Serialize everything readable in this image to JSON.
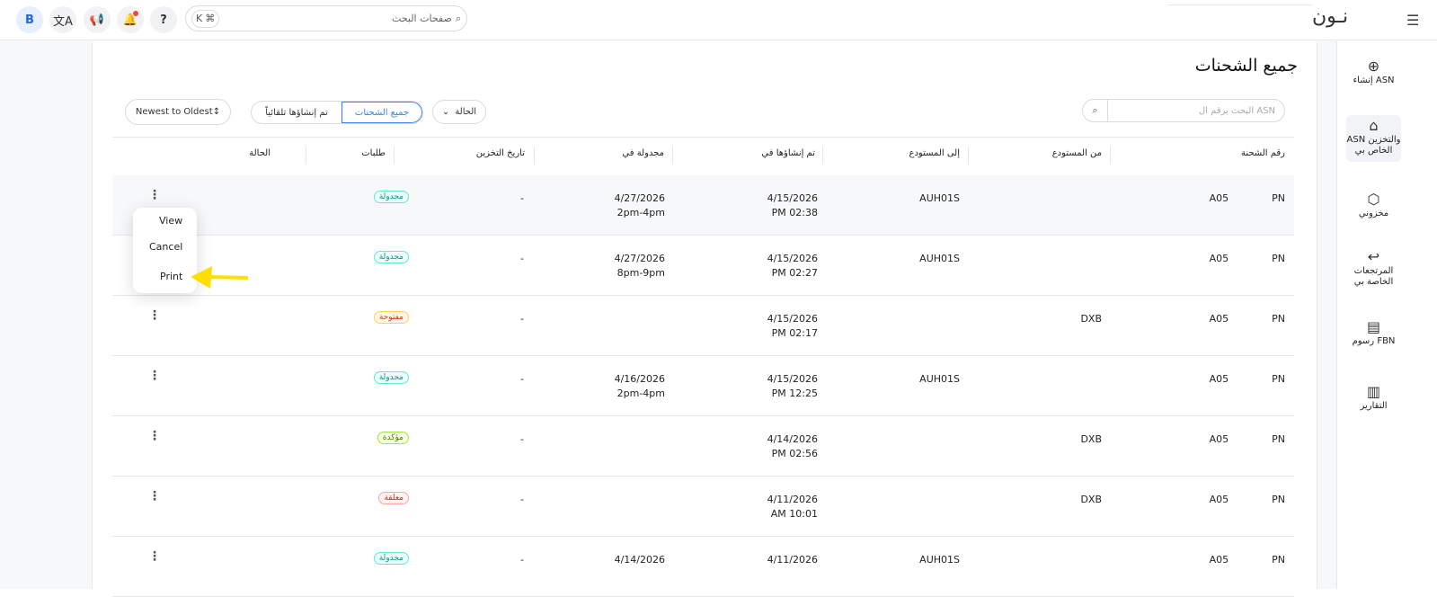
{
  "topbar": {
    "avatar": "B",
    "search_placeholder": "صفحات البحث",
    "shortcut_key": "K",
    "shortcut_mod": "⌘",
    "logo": "نـون"
  },
  "colors": {
    "accent": "#3b82f6",
    "scheduled": "#14b8a6",
    "open": "#f59e0b",
    "confirmed": "#65a30d",
    "pending": "#ef4444",
    "arrow": "#fde000"
  },
  "sidebar": {
    "items": [
      {
        "label": "إنشاء ASN",
        "icon": "plus-circle-icon"
      },
      {
        "label": "ASN والتخزين الخاص بي",
        "icon": "warehouse-icon"
      },
      {
        "label": "مخزوني",
        "icon": "box-icon"
      },
      {
        "label": "المرتجعات الخاصة بي",
        "icon": "return-icon"
      },
      {
        "label": "رسوم FBN",
        "icon": "receipt-icon"
      },
      {
        "label": "التقارير",
        "icon": "report-icon"
      }
    ]
  },
  "page": {
    "title": "جميع الشحنات",
    "asn_search_placeholder": "البحث برقم ال ASN",
    "status_filter": "الحالة",
    "tabs": [
      "جميع الشحنات",
      "تم إنشاؤها تلقائياً"
    ],
    "sort": "Newest to Oldest"
  },
  "table": {
    "headers": [
      "رقم الشحنة",
      "من المستودع",
      "إلى المستودع",
      "تم إنشاؤها في",
      "مجدولة في",
      "تاريخ التخزين",
      "طلبات",
      "الحالة"
    ],
    "rows": [
      {
        "id_start": "A05",
        "id_end": "PN",
        "from": "",
        "to": "AUH01S",
        "created_date": "4/15/2026",
        "created_time": "PM 02:38",
        "sched_date": "4/27/2026",
        "sched_time": "2pm-4pm",
        "storage": "-",
        "orders": "",
        "status": "مجدولة",
        "status_type": "scheduled"
      },
      {
        "id_start": "A05",
        "id_end": "PN",
        "from": "",
        "to": "AUH01S",
        "created_date": "4/15/2026",
        "created_time": "PM 02:27",
        "sched_date": "4/27/2026",
        "sched_time": "8pm-9pm",
        "storage": "-",
        "orders": "",
        "status": "مجدولة",
        "status_type": "scheduled"
      },
      {
        "id_start": "A05",
        "id_end": "PN",
        "from": "DXB",
        "to": "",
        "created_date": "4/15/2026",
        "created_time": "PM 02:17",
        "sched_date": "",
        "sched_time": "",
        "storage": "-",
        "orders": "",
        "status": "مفتوحة",
        "status_type": "open"
      },
      {
        "id_start": "A05",
        "id_end": "PN",
        "from": "",
        "to": "AUH01S",
        "created_date": "4/15/2026",
        "created_time": "PM 12:25",
        "sched_date": "4/16/2026",
        "sched_time": "2pm-4pm",
        "storage": "-",
        "orders": "",
        "status": "مجدولة",
        "status_type": "scheduled"
      },
      {
        "id_start": "A05",
        "id_end": "PN",
        "from": "DXB",
        "to": "",
        "created_date": "4/14/2026",
        "created_time": "PM 02:56",
        "sched_date": "",
        "sched_time": "",
        "storage": "-",
        "orders": "",
        "status": "مؤكدة",
        "status_type": "confirmed"
      },
      {
        "id_start": "A05",
        "id_end": "PN",
        "from": "DXB",
        "to": "",
        "created_date": "4/11/2026",
        "created_time": "AM 10:01",
        "sched_date": "",
        "sched_time": "",
        "storage": "-",
        "orders": "",
        "status": "معلقة",
        "status_type": "pending"
      },
      {
        "id_start": "A05",
        "id_end": "PN",
        "from": "",
        "to": "AUH01S",
        "created_date": "4/11/2026",
        "created_time": "",
        "sched_date": "4/14/2026",
        "sched_time": "",
        "storage": "-",
        "orders": "",
        "status": "مجدولة",
        "status_type": "scheduled"
      }
    ]
  },
  "row_menu": {
    "items": [
      "View",
      "Cancel",
      "Print"
    ]
  }
}
